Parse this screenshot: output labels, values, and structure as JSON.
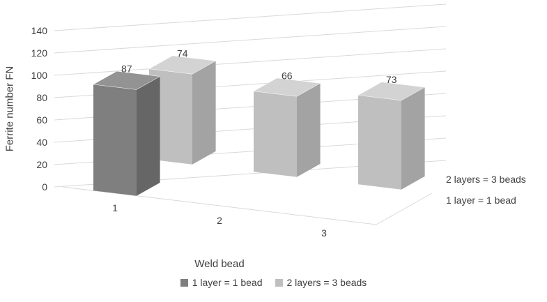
{
  "chart_data": {
    "type": "bar",
    "subtype": "3d-column",
    "title": "",
    "xlabel": "Weld bead",
    "ylabel": "Ferrite number FN",
    "categories": [
      "1",
      "2",
      "3"
    ],
    "series": [
      {
        "name": "1 layer = 1 bead",
        "values": [
          87,
          null,
          null
        ],
        "color": "#7f7f7f",
        "color_top": "#939393",
        "color_side": "#666666"
      },
      {
        "name": "2 layers = 3 beads",
        "values": [
          74,
          66,
          73
        ],
        "color": "#bfbfbf",
        "color_top": "#d3d3d3",
        "color_side": "#a3a3a3"
      }
    ],
    "ylim": [
      0,
      140
    ],
    "yticks": [
      0,
      20,
      40,
      60,
      80,
      100,
      120,
      140
    ],
    "depth_axis_labels_top_to_bottom": [
      "2 layers = 3 beads",
      "1 layer = 1 bead"
    ],
    "legend": {
      "position": "bottom",
      "items": [
        "1 layer = 1 bead",
        "2 layers = 3 beads"
      ]
    },
    "grid": true,
    "data_labels": true,
    "background": "#ffffff",
    "text_color": "#404040",
    "gridline_color": "#d9d9d9"
  }
}
